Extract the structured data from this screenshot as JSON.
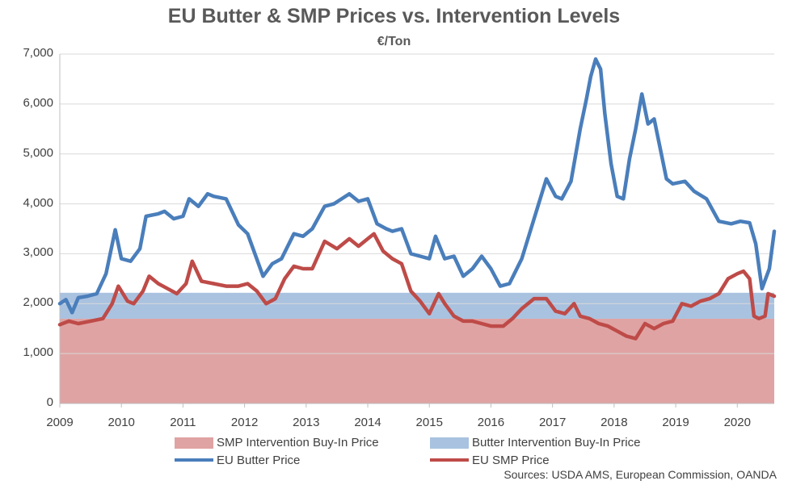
{
  "chart_data": {
    "type": "line",
    "title": "EU Butter & SMP Prices vs. Intervention Levels",
    "subtitle": "€/Ton",
    "xlabel": "",
    "ylabel": "",
    "xlim": [
      2009.0,
      2020.6
    ],
    "ylim": [
      0,
      7000
    ],
    "x_ticks": [
      "2009",
      "2010",
      "2011",
      "2012",
      "2013",
      "2014",
      "2015",
      "2016",
      "2017",
      "2018",
      "2019",
      "2020"
    ],
    "y_ticks": [
      "0",
      "1,000",
      "2,000",
      "3,000",
      "4,000",
      "5,000",
      "6,000",
      "7,000"
    ],
    "grid": "horizontal",
    "legend_position": "bottom",
    "bands": [
      {
        "name": "SMP Intervention Buy-In Price",
        "color": "#e0a3a3",
        "from": 0,
        "to": 1698
      },
      {
        "name": "Butter Intervention Buy-In Price",
        "color": "#a9c2e0",
        "from": 1698,
        "to": 2218
      }
    ],
    "series": [
      {
        "name": "EU Butter Price",
        "color": "#4a7ebb",
        "points": [
          [
            2009.0,
            2000
          ],
          [
            2009.1,
            2080
          ],
          [
            2009.2,
            1820
          ],
          [
            2009.3,
            2120
          ],
          [
            2009.45,
            2150
          ],
          [
            2009.6,
            2200
          ],
          [
            2009.75,
            2600
          ],
          [
            2009.9,
            3480
          ],
          [
            2010.0,
            2900
          ],
          [
            2010.15,
            2850
          ],
          [
            2010.3,
            3100
          ],
          [
            2010.4,
            3750
          ],
          [
            2010.6,
            3800
          ],
          [
            2010.7,
            3850
          ],
          [
            2010.85,
            3700
          ],
          [
            2011.0,
            3750
          ],
          [
            2011.1,
            4100
          ],
          [
            2011.25,
            3950
          ],
          [
            2011.4,
            4200
          ],
          [
            2011.5,
            4150
          ],
          [
            2011.7,
            4100
          ],
          [
            2011.9,
            3580
          ],
          [
            2012.05,
            3400
          ],
          [
            2012.3,
            2550
          ],
          [
            2012.45,
            2800
          ],
          [
            2012.6,
            2900
          ],
          [
            2012.8,
            3400
          ],
          [
            2012.95,
            3350
          ],
          [
            2013.1,
            3500
          ],
          [
            2013.3,
            3950
          ],
          [
            2013.45,
            4000
          ],
          [
            2013.7,
            4200
          ],
          [
            2013.85,
            4050
          ],
          [
            2014.0,
            4100
          ],
          [
            2014.15,
            3600
          ],
          [
            2014.3,
            3500
          ],
          [
            2014.4,
            3450
          ],
          [
            2014.55,
            3500
          ],
          [
            2014.7,
            3000
          ],
          [
            2014.85,
            2950
          ],
          [
            2015.0,
            2900
          ],
          [
            2015.1,
            3350
          ],
          [
            2015.25,
            2900
          ],
          [
            2015.4,
            2950
          ],
          [
            2015.55,
            2550
          ],
          [
            2015.7,
            2700
          ],
          [
            2015.85,
            2950
          ],
          [
            2016.0,
            2700
          ],
          [
            2016.15,
            2350
          ],
          [
            2016.3,
            2400
          ],
          [
            2016.5,
            2900
          ],
          [
            2016.7,
            3700
          ],
          [
            2016.9,
            4500
          ],
          [
            2017.05,
            4150
          ],
          [
            2017.15,
            4100
          ],
          [
            2017.3,
            4450
          ],
          [
            2017.45,
            5500
          ],
          [
            2017.55,
            6100
          ],
          [
            2017.62,
            6550
          ],
          [
            2017.7,
            6900
          ],
          [
            2017.78,
            6700
          ],
          [
            2017.85,
            5800
          ],
          [
            2017.95,
            4800
          ],
          [
            2018.05,
            4150
          ],
          [
            2018.15,
            4100
          ],
          [
            2018.25,
            4900
          ],
          [
            2018.35,
            5500
          ],
          [
            2018.45,
            6200
          ],
          [
            2018.55,
            5600
          ],
          [
            2018.65,
            5700
          ],
          [
            2018.75,
            5100
          ],
          [
            2018.85,
            4500
          ],
          [
            2018.95,
            4400
          ],
          [
            2019.15,
            4450
          ],
          [
            2019.3,
            4250
          ],
          [
            2019.5,
            4100
          ],
          [
            2019.7,
            3650
          ],
          [
            2019.9,
            3600
          ],
          [
            2020.05,
            3650
          ],
          [
            2020.2,
            3620
          ],
          [
            2020.3,
            3200
          ],
          [
            2020.4,
            2300
          ],
          [
            2020.52,
            2700
          ],
          [
            2020.6,
            3450
          ]
        ]
      },
      {
        "name": "EU SMP Price",
        "color": "#be4b48",
        "points": [
          [
            2009.0,
            1580
          ],
          [
            2009.15,
            1650
          ],
          [
            2009.3,
            1600
          ],
          [
            2009.5,
            1650
          ],
          [
            2009.7,
            1700
          ],
          [
            2009.85,
            2000
          ],
          [
            2009.95,
            2350
          ],
          [
            2010.1,
            2050
          ],
          [
            2010.2,
            2000
          ],
          [
            2010.35,
            2250
          ],
          [
            2010.45,
            2550
          ],
          [
            2010.6,
            2400
          ],
          [
            2010.75,
            2300
          ],
          [
            2010.9,
            2200
          ],
          [
            2011.05,
            2400
          ],
          [
            2011.15,
            2850
          ],
          [
            2011.3,
            2450
          ],
          [
            2011.5,
            2400
          ],
          [
            2011.7,
            2350
          ],
          [
            2011.9,
            2350
          ],
          [
            2012.05,
            2400
          ],
          [
            2012.2,
            2250
          ],
          [
            2012.35,
            2000
          ],
          [
            2012.5,
            2100
          ],
          [
            2012.65,
            2500
          ],
          [
            2012.8,
            2750
          ],
          [
            2012.95,
            2700
          ],
          [
            2013.1,
            2700
          ],
          [
            2013.3,
            3250
          ],
          [
            2013.5,
            3100
          ],
          [
            2013.7,
            3300
          ],
          [
            2013.85,
            3150
          ],
          [
            2014.0,
            3300
          ],
          [
            2014.1,
            3400
          ],
          [
            2014.25,
            3050
          ],
          [
            2014.4,
            2900
          ],
          [
            2014.55,
            2800
          ],
          [
            2014.7,
            2250
          ],
          [
            2014.85,
            2050
          ],
          [
            2015.0,
            1800
          ],
          [
            2015.15,
            2200
          ],
          [
            2015.25,
            2000
          ],
          [
            2015.4,
            1750
          ],
          [
            2015.55,
            1650
          ],
          [
            2015.7,
            1650
          ],
          [
            2015.85,
            1600
          ],
          [
            2016.0,
            1550
          ],
          [
            2016.2,
            1550
          ],
          [
            2016.35,
            1700
          ],
          [
            2016.5,
            1900
          ],
          [
            2016.7,
            2100
          ],
          [
            2016.9,
            2100
          ],
          [
            2017.05,
            1850
          ],
          [
            2017.2,
            1800
          ],
          [
            2017.35,
            2000
          ],
          [
            2017.45,
            1750
          ],
          [
            2017.6,
            1700
          ],
          [
            2017.75,
            1600
          ],
          [
            2017.9,
            1550
          ],
          [
            2018.05,
            1450
          ],
          [
            2018.2,
            1350
          ],
          [
            2018.35,
            1300
          ],
          [
            2018.5,
            1600
          ],
          [
            2018.65,
            1500
          ],
          [
            2018.8,
            1600
          ],
          [
            2018.95,
            1650
          ],
          [
            2019.1,
            2000
          ],
          [
            2019.25,
            1950
          ],
          [
            2019.4,
            2050
          ],
          [
            2019.55,
            2100
          ],
          [
            2019.7,
            2200
          ],
          [
            2019.85,
            2500
          ],
          [
            2020.0,
            2600
          ],
          [
            2020.1,
            2650
          ],
          [
            2020.2,
            2500
          ],
          [
            2020.27,
            1750
          ],
          [
            2020.35,
            1700
          ],
          [
            2020.45,
            1750
          ],
          [
            2020.5,
            2200
          ],
          [
            2020.6,
            2150
          ]
        ]
      }
    ]
  },
  "legend": {
    "smp_band": "SMP Intervention Buy-In Price",
    "butter_band": "Butter Intervention Buy-In Price",
    "butter_line": "EU Butter Price",
    "smp_line": "EU SMP Price"
  },
  "source": "Sources: USDA AMS, European Commission, OANDA"
}
